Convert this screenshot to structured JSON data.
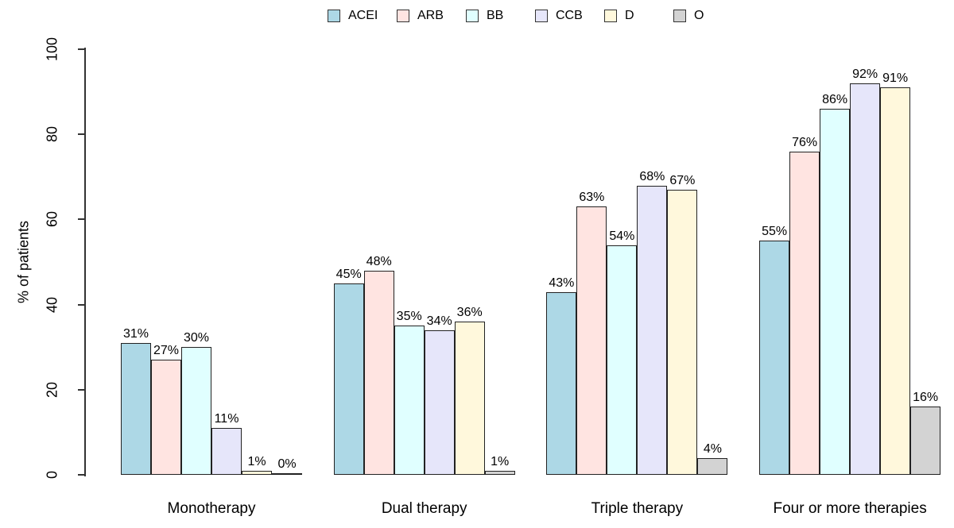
{
  "chart_data": {
    "type": "bar",
    "title": "",
    "ylabel": "% of patients",
    "xlabel": "",
    "ylim": [
      0,
      100
    ],
    "yticks": [
      0,
      20,
      40,
      60,
      80,
      100
    ],
    "grid": false,
    "legend_position": "top",
    "value_label_suffix": "%",
    "categories": [
      "Monotherapy",
      "Dual therapy",
      "Triple therapy",
      "Four or more therapies"
    ],
    "series": [
      {
        "name": "ACEI",
        "color": "#add8e6",
        "values": [
          31,
          45,
          43,
          55
        ]
      },
      {
        "name": "ARB",
        "color": "#ffe4e1",
        "values": [
          27,
          48,
          63,
          76
        ]
      },
      {
        "name": "BB",
        "color": "#e0ffff",
        "values": [
          30,
          35,
          54,
          86
        ]
      },
      {
        "name": "CCB",
        "color": "#e6e6fa",
        "values": [
          11,
          34,
          68,
          92
        ]
      },
      {
        "name": "D",
        "color": "#fff8dc",
        "values": [
          1,
          36,
          67,
          91
        ]
      },
      {
        "name": "O",
        "color": "#d3d3d3",
        "values": [
          0,
          1,
          4,
          16
        ]
      }
    ],
    "colors": {
      "bar_border": "#222222",
      "axis": "#333333",
      "text": "#000000",
      "background": "#ffffff"
    }
  }
}
